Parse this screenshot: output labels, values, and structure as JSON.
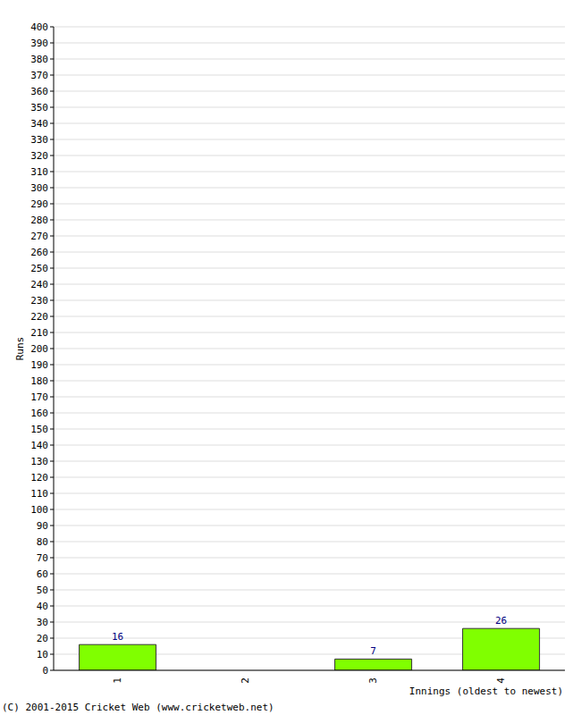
{
  "chart_data": {
    "type": "bar",
    "categories": [
      "1",
      "2",
      "3",
      "4"
    ],
    "values": [
      16,
      0,
      7,
      26
    ],
    "color": "#80ff00",
    "ylim": [
      0,
      400
    ],
    "yticks": [
      0,
      10,
      20,
      30,
      40,
      50,
      60,
      70,
      80,
      90,
      100,
      110,
      120,
      130,
      140,
      150,
      160,
      170,
      180,
      190,
      200,
      210,
      220,
      230,
      240,
      250,
      260,
      270,
      280,
      290,
      300,
      310,
      320,
      330,
      340,
      350,
      360,
      370,
      380,
      390,
      400
    ],
    "xlabel": "Innings (oldest to newest)",
    "ylabel": "Runs",
    "annotations": [
      "(C) 2001-2015 Cricket Web (www.cricketweb.net)"
    ],
    "grid": true,
    "data_labels": true
  }
}
